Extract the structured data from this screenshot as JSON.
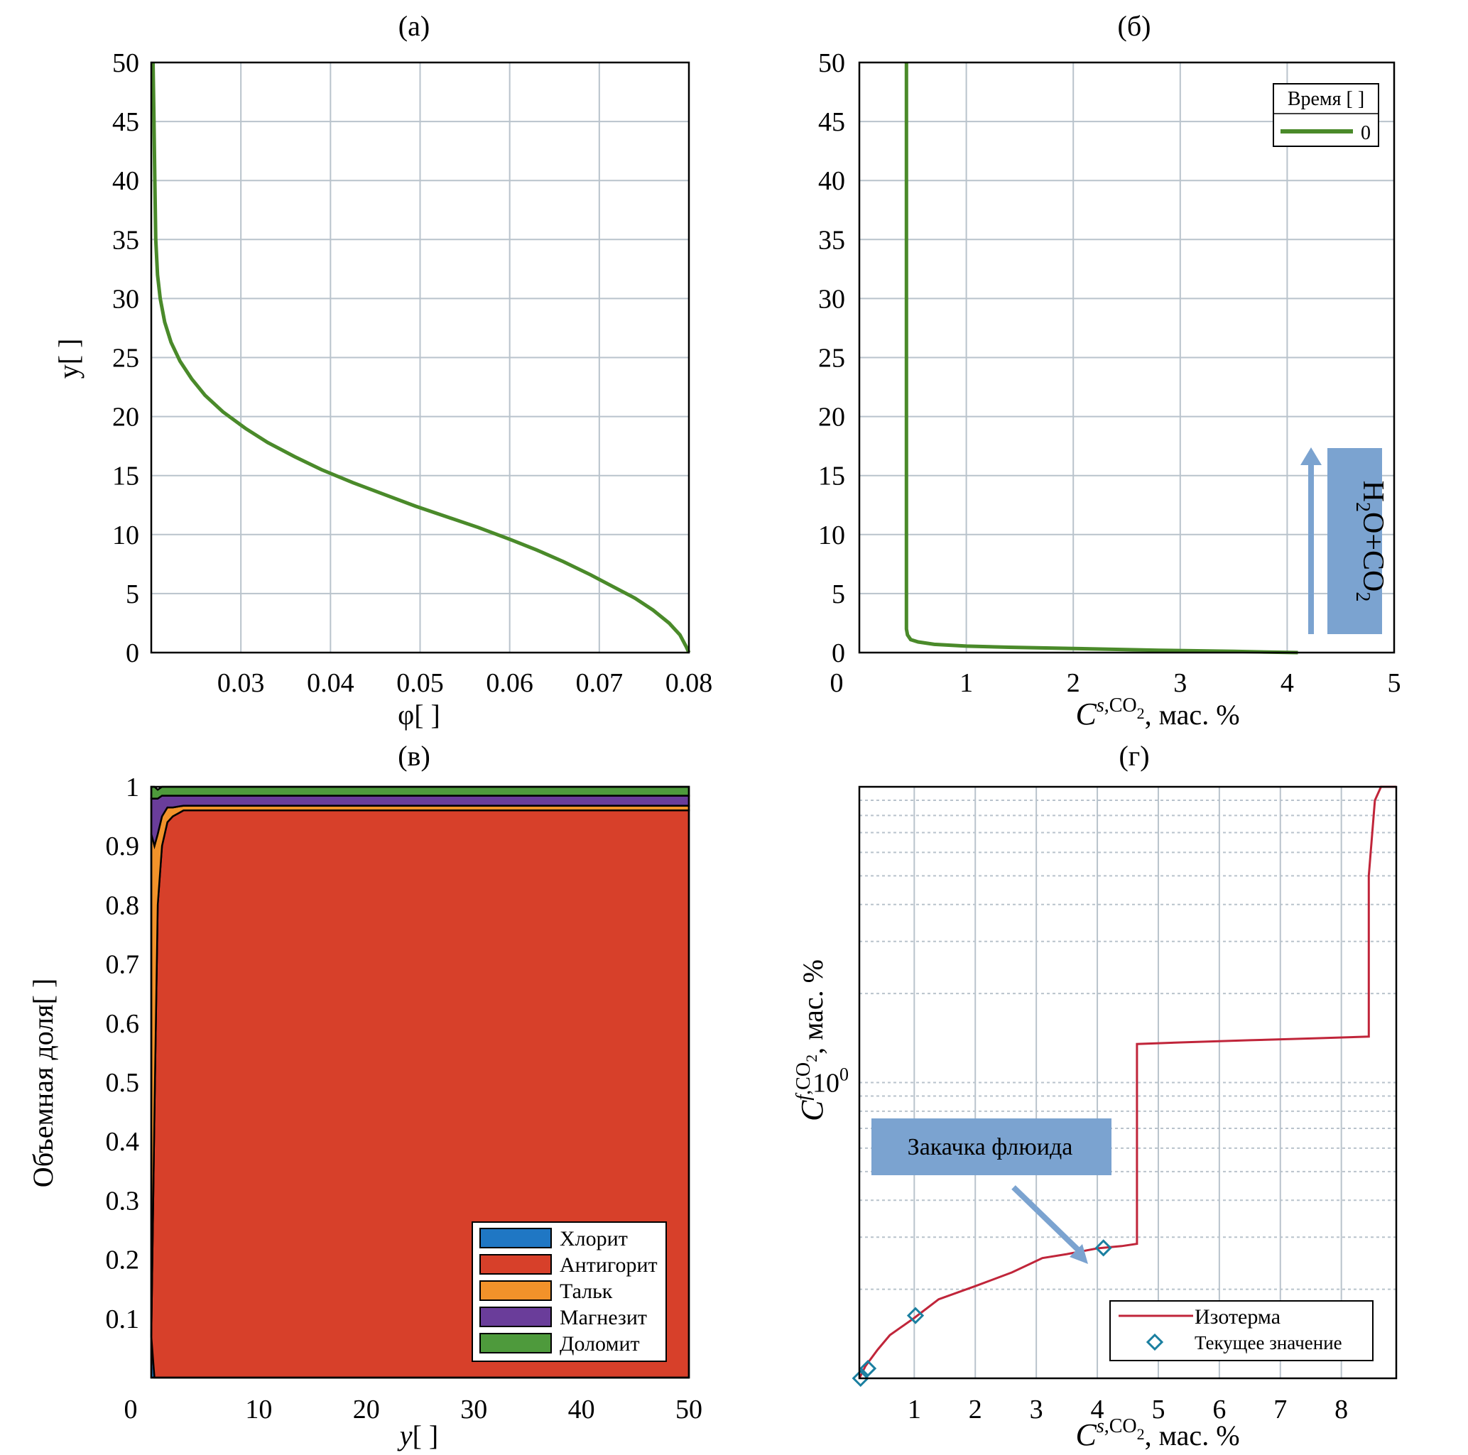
{
  "panels": {
    "a": {
      "title": "(а)",
      "xlabel": "φ[ ]",
      "ylabel": "y[ ]"
    },
    "b": {
      "title": "(б)",
      "xlabel_main": "C",
      "xlabel_sup": "s,CO",
      "xlabel_sub": "2",
      "xlabel_tail": ", мас. %",
      "legend_title": "Время [ ]",
      "legend_entry": "0",
      "annotation_main": "H",
      "annotation_sub1": "2",
      "annotation_mid": "O+CO",
      "annotation_sub2": "2"
    },
    "c": {
      "title": "(в)",
      "xlabel": "y[ ]",
      "ylabel": "Объемная доля[ ]",
      "legend": [
        "Хлорит",
        "Антигорит",
        "Тальк",
        "Магнезит",
        "Доломит"
      ]
    },
    "d": {
      "title": "(г)",
      "xlabel_main": "C",
      "xlabel_sup": "s,CO",
      "xlabel_sub": "2",
      "xlabel_tail": ", мас. %",
      "ylabel_main": "C",
      "ylabel_sup": "f,CO",
      "ylabel_sub": "2",
      "ylabel_tail": ", мас. %",
      "ytick_base": "10",
      "ytick_exp": "0",
      "annotation": "Закачка флюида",
      "legend": [
        "Изотерма",
        "Текущее значение"
      ]
    }
  },
  "colors": {
    "green_line": "#4a8a2a",
    "chlorite": "#1f77c4",
    "antigorite": "#d7402a",
    "talc": "#f2922a",
    "magnesite": "#6a3d9a",
    "dolomite": "#4e9a3c",
    "isotherm": "#c0253a",
    "marker": "#1a7fa0",
    "annotation_fill": "#7ba3d0"
  },
  "chart_data": [
    {
      "id": "a",
      "type": "line",
      "title": "(а)",
      "xlabel": "φ[ ]",
      "ylabel": "y[ ]",
      "xlim": [
        0.02,
        0.08
      ],
      "ylim": [
        0,
        50
      ],
      "xticks": [
        "0.03",
        "0.04",
        "0.05",
        "0.06",
        "0.07",
        "0.08"
      ],
      "xtick_values": [
        0.03,
        0.04,
        0.05,
        0.06,
        0.07,
        0.08
      ],
      "yticks": [
        "0",
        "5",
        "10",
        "15",
        "20",
        "25",
        "30",
        "35",
        "40",
        "45",
        "50"
      ],
      "ytick_values": [
        0,
        5,
        10,
        15,
        20,
        25,
        30,
        35,
        40,
        45,
        50
      ],
      "grid": true,
      "series": [
        {
          "x": [
            0.08,
            0.0797,
            0.079,
            0.0778,
            0.076,
            0.074,
            0.0715,
            0.069,
            0.066,
            0.063,
            0.06,
            0.0565,
            0.053,
            0.0495,
            0.046,
            0.0425,
            0.039,
            0.036,
            0.033,
            0.0305,
            0.028,
            0.026,
            0.0245,
            0.0232,
            0.0222,
            0.0215,
            0.021,
            0.0207,
            0.0205,
            0.0204,
            0.0203,
            0.0202
          ],
          "y": [
            0.0,
            0.5,
            1.5,
            2.5,
            3.6,
            4.6,
            5.6,
            6.6,
            7.7,
            8.7,
            9.6,
            10.6,
            11.5,
            12.4,
            13.4,
            14.4,
            15.5,
            16.6,
            17.8,
            19.0,
            20.4,
            21.8,
            23.2,
            24.7,
            26.3,
            28.0,
            30.0,
            32.0,
            35.0,
            40.0,
            45.0,
            50.0
          ]
        }
      ]
    },
    {
      "id": "b",
      "type": "line",
      "title": "(б)",
      "xlabel": "C s,CO2, мас. %",
      "ylabel": "",
      "xlim": [
        0,
        5
      ],
      "ylim": [
        0,
        50
      ],
      "xticks": [
        "0",
        "1",
        "2",
        "3",
        "4",
        "5"
      ],
      "xtick_values": [
        0,
        1,
        2,
        3,
        4,
        5
      ],
      "yticks": [
        "5",
        "10",
        "15",
        "20",
        "25",
        "30",
        "35",
        "40",
        "45",
        "50"
      ],
      "ytick_values": [
        5,
        10,
        15,
        20,
        25,
        30,
        35,
        40,
        45,
        50
      ],
      "grid": true,
      "legend_title": "Время [ ]",
      "legend_position": "top-right",
      "series": [
        {
          "name": "0",
          "x": [
            4.1,
            3.5,
            2.8,
            2.0,
            1.4,
            1.0,
            0.7,
            0.55,
            0.48,
            0.45,
            0.44,
            0.44,
            0.44
          ],
          "y": [
            0.0,
            0.1,
            0.2,
            0.35,
            0.45,
            0.55,
            0.7,
            0.9,
            1.1,
            1.5,
            2.0,
            20.0,
            50.0
          ]
        }
      ]
    },
    {
      "id": "c",
      "type": "area",
      "title": "(в)",
      "xlabel": "y[ ]",
      "ylabel": "Объемная доля[ ]",
      "xlim": [
        0,
        50
      ],
      "ylim": [
        0,
        1
      ],
      "xticks": [
        "0",
        "10",
        "20",
        "30",
        "40",
        "50"
      ],
      "xtick_values": [
        0,
        10,
        20,
        30,
        40,
        50
      ],
      "yticks": [
        "0.1",
        "0.2",
        "0.3",
        "0.4",
        "0.5",
        "0.6",
        "0.7",
        "0.8",
        "0.9",
        "1"
      ],
      "ytick_values": [
        0.1,
        0.2,
        0.3,
        0.4,
        0.5,
        0.6,
        0.7,
        0.8,
        0.9,
        1.0
      ],
      "legend_position": "bottom-right",
      "x": [
        0.0,
        0.3,
        0.6,
        1.0,
        1.5,
        2.0,
        3.0,
        5.0,
        50.0
      ],
      "series": [
        {
          "name": "Хлорит",
          "values": [
            0.07,
            0.0,
            0.0,
            0.0,
            0.0,
            0.0,
            0.0,
            0.0,
            0.0
          ]
        },
        {
          "name": "Антигорит",
          "values": [
            0.0,
            0.45,
            0.8,
            0.9,
            0.94,
            0.95,
            0.96,
            0.96,
            0.96
          ]
        },
        {
          "name": "Тальк",
          "values": [
            0.85,
            0.45,
            0.12,
            0.05,
            0.025,
            0.015,
            0.008,
            0.008,
            0.008
          ]
        },
        {
          "name": "Магнезит",
          "values": [
            0.06,
            0.08,
            0.06,
            0.035,
            0.02,
            0.02,
            0.017,
            0.017,
            0.017
          ]
        },
        {
          "name": "Доломит",
          "values": [
            0.02,
            0.02,
            0.015,
            0.015,
            0.015,
            0.015,
            0.015,
            0.015,
            0.015
          ]
        }
      ]
    },
    {
      "id": "d",
      "type": "line",
      "title": "(г)",
      "xlabel": "C s,CO2, мас. %",
      "ylabel": "C f,CO2, мас. %",
      "xlim": [
        0.1,
        8.9
      ],
      "ylim": [
        0.1,
        10
      ],
      "yscale": "log",
      "xticks": [
        "1",
        "2",
        "3",
        "4",
        "5",
        "6",
        "7",
        "8"
      ],
      "xtick_values": [
        1,
        2,
        3,
        4,
        5,
        6,
        7,
        8
      ],
      "ytick_values": [
        1
      ],
      "legend_position": "bottom-right",
      "series": [
        {
          "name": "Изотерма",
          "x": [
            0.1,
            0.2,
            0.4,
            0.6,
            1.0,
            1.4,
            2.0,
            2.6,
            3.1,
            3.5,
            4.0,
            4.4,
            4.65,
            4.65,
            5.5,
            6.5,
            7.5,
            8.45,
            8.45,
            8.55,
            8.65,
            8.9
          ],
          "y": [
            0.1,
            0.11,
            0.125,
            0.14,
            0.16,
            0.185,
            0.205,
            0.228,
            0.255,
            0.263,
            0.275,
            0.28,
            0.285,
            1.35,
            1.37,
            1.39,
            1.41,
            1.43,
            5.0,
            9.0,
            10.0,
            10.0
          ]
        },
        {
          "name": "Текущее значение",
          "x": [
            0.12,
            0.24,
            1.02,
            4.1
          ],
          "y": [
            0.1,
            0.108,
            0.163,
            0.276
          ]
        }
      ],
      "annotation": "Закачка флюида"
    }
  ]
}
